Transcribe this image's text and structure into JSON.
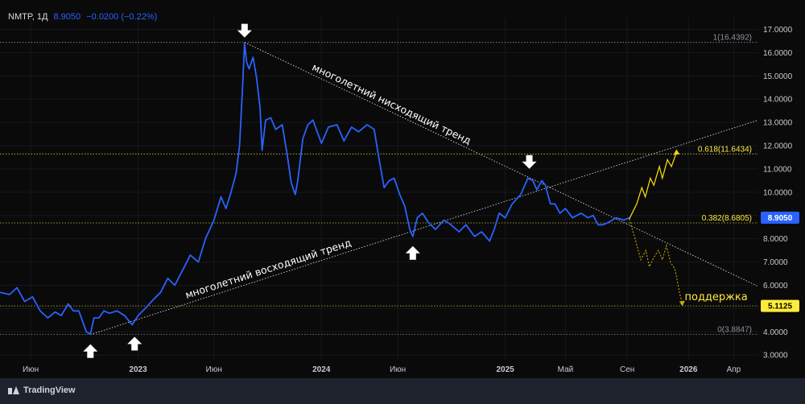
{
  "header": {
    "symbol": "NMTP, 1Д",
    "last": "8.9050",
    "change": "−0.0200 (−0.22%)"
  },
  "brand": {
    "name": "TradingView",
    "icon": "tradingview-logo-icon"
  },
  "colors": {
    "background": "#0a0a0a",
    "price_line": "#2962ff",
    "fib_line": "#c9c240",
    "trend_line": "#d1d4dc",
    "forecast": "#f0d40a",
    "price_badge": "#2962ff",
    "fib_badge": "#ffeb3b"
  },
  "chart_data": {
    "type": "line",
    "title": "",
    "xlabel": "",
    "ylabel": "",
    "ylim": [
      2.8,
      17.5
    ],
    "y_ticks": [
      "3.0000",
      "4.0000",
      "5.0000",
      "6.0000",
      "7.0000",
      "8.0000",
      "9.0000",
      "10.0000",
      "11.0000",
      "12.0000",
      "13.0000",
      "14.0000",
      "15.0000",
      "16.0000",
      "17.0000"
    ],
    "x_ticks": [
      {
        "label": "Июн",
        "date": "2022-06-01"
      },
      {
        "label": "2023",
        "date": "2023-01-01"
      },
      {
        "label": "Июн",
        "date": "2023-06-01"
      },
      {
        "label": "2024",
        "date": "2024-01-01"
      },
      {
        "label": "Июн",
        "date": "2024-06-01"
      },
      {
        "label": "2025",
        "date": "2025-01-01"
      },
      {
        "label": "Май",
        "date": "2025-05-01"
      },
      {
        "label": "Сен",
        "date": "2025-09-01"
      },
      {
        "label": "2026",
        "date": "2026-01-01"
      },
      {
        "label": "Апр",
        "date": "2026-04-01"
      }
    ],
    "x_range": [
      "2022-04-01",
      "2026-05-20"
    ],
    "series": [
      {
        "values": [
          [
            "2022-04-01",
            5.7
          ],
          [
            "2022-04-20",
            5.6
          ],
          [
            "2022-05-05",
            5.9
          ],
          [
            "2022-05-20",
            5.3
          ],
          [
            "2022-06-05",
            5.5
          ],
          [
            "2022-06-20",
            4.9
          ],
          [
            "2022-07-05",
            4.6
          ],
          [
            "2022-07-20",
            4.85
          ],
          [
            "2022-08-01",
            4.7
          ],
          [
            "2022-08-15",
            5.2
          ],
          [
            "2022-08-25",
            4.9
          ],
          [
            "2022-09-05",
            4.9
          ],
          [
            "2022-09-20",
            4.0
          ],
          [
            "2022-09-28",
            3.9
          ],
          [
            "2022-10-05",
            4.6
          ],
          [
            "2022-10-15",
            4.6
          ],
          [
            "2022-10-25",
            4.9
          ],
          [
            "2022-11-05",
            4.8
          ],
          [
            "2022-11-20",
            4.9
          ],
          [
            "2022-12-05",
            4.7
          ],
          [
            "2022-12-20",
            4.3
          ],
          [
            "2023-01-01",
            4.7
          ],
          [
            "2023-01-15",
            5.0
          ],
          [
            "2023-02-01",
            5.4
          ],
          [
            "2023-02-15",
            5.7
          ],
          [
            "2023-03-01",
            6.3
          ],
          [
            "2023-03-15",
            6.0
          ],
          [
            "2023-04-01",
            6.7
          ],
          [
            "2023-04-15",
            7.3
          ],
          [
            "2023-05-01",
            7.0
          ],
          [
            "2023-05-15",
            8.0
          ],
          [
            "2023-06-01",
            8.8
          ],
          [
            "2023-06-15",
            9.8
          ],
          [
            "2023-06-25",
            9.3
          ],
          [
            "2023-07-05",
            10.0
          ],
          [
            "2023-07-15",
            10.8
          ],
          [
            "2023-07-22",
            12.0
          ],
          [
            "2023-07-28",
            14.5
          ],
          [
            "2023-08-01",
            16.4
          ],
          [
            "2023-08-05",
            15.6
          ],
          [
            "2023-08-10",
            15.3
          ],
          [
            "2023-08-18",
            15.8
          ],
          [
            "2023-08-25",
            14.9
          ],
          [
            "2023-09-01",
            13.6
          ],
          [
            "2023-09-05",
            11.8
          ],
          [
            "2023-09-12",
            13.1
          ],
          [
            "2023-09-22",
            13.2
          ],
          [
            "2023-10-02",
            12.7
          ],
          [
            "2023-10-15",
            12.9
          ],
          [
            "2023-10-25",
            11.6
          ],
          [
            "2023-11-02",
            10.4
          ],
          [
            "2023-11-10",
            9.9
          ],
          [
            "2023-11-15",
            10.5
          ],
          [
            "2023-11-25",
            12.3
          ],
          [
            "2023-12-05",
            12.9
          ],
          [
            "2023-12-15",
            13.1
          ],
          [
            "2024-01-01",
            12.1
          ],
          [
            "2024-01-15",
            12.8
          ],
          [
            "2024-02-01",
            12.9
          ],
          [
            "2024-02-15",
            12.2
          ],
          [
            "2024-03-01",
            12.8
          ],
          [
            "2024-03-15",
            12.6
          ],
          [
            "2024-04-01",
            12.9
          ],
          [
            "2024-04-15",
            12.7
          ],
          [
            "2024-04-25",
            11.4
          ],
          [
            "2024-05-05",
            10.2
          ],
          [
            "2024-05-15",
            10.5
          ],
          [
            "2024-05-25",
            10.6
          ],
          [
            "2024-06-05",
            9.9
          ],
          [
            "2024-06-15",
            9.4
          ],
          [
            "2024-06-25",
            8.4
          ],
          [
            "2024-07-01",
            8.1
          ],
          [
            "2024-07-10",
            8.9
          ],
          [
            "2024-07-20",
            9.1
          ],
          [
            "2024-08-01",
            8.7
          ],
          [
            "2024-08-15",
            8.4
          ],
          [
            "2024-09-01",
            8.8
          ],
          [
            "2024-09-15",
            8.6
          ],
          [
            "2024-10-01",
            8.3
          ],
          [
            "2024-10-15",
            8.6
          ],
          [
            "2024-11-01",
            8.1
          ],
          [
            "2024-11-15",
            8.3
          ],
          [
            "2024-12-01",
            7.9
          ],
          [
            "2024-12-10",
            8.4
          ],
          [
            "2024-12-20",
            9.1
          ],
          [
            "2025-01-01",
            8.9
          ],
          [
            "2025-01-15",
            9.5
          ],
          [
            "2025-02-01",
            9.9
          ],
          [
            "2025-02-15",
            10.6
          ],
          [
            "2025-02-25",
            10.5
          ],
          [
            "2025-03-05",
            10.1
          ],
          [
            "2025-03-15",
            10.5
          ],
          [
            "2025-03-22",
            10.3
          ],
          [
            "2025-04-01",
            9.5
          ],
          [
            "2025-04-10",
            9.5
          ],
          [
            "2025-04-20",
            9.1
          ],
          [
            "2025-05-01",
            9.3
          ],
          [
            "2025-05-15",
            8.9
          ],
          [
            "2025-06-01",
            9.1
          ],
          [
            "2025-06-15",
            8.9
          ],
          [
            "2025-06-25",
            9.0
          ],
          [
            "2025-07-05",
            8.6
          ],
          [
            "2025-07-15",
            8.6
          ],
          [
            "2025-07-25",
            8.7
          ],
          [
            "2025-08-10",
            8.9
          ],
          [
            "2025-08-25",
            8.8
          ],
          [
            "2025-09-05",
            8.9
          ]
        ]
      },
      {
        "values": [
          [
            "2025-09-05",
            8.85
          ],
          [
            "2025-09-20",
            9.5
          ],
          [
            "2025-09-30",
            10.2
          ],
          [
            "2025-10-07",
            9.8
          ],
          [
            "2025-10-17",
            10.6
          ],
          [
            "2025-10-24",
            10.3
          ],
          [
            "2025-11-04",
            11.1
          ],
          [
            "2025-11-10",
            10.6
          ],
          [
            "2025-11-20",
            11.4
          ],
          [
            "2025-11-28",
            11.1
          ],
          [
            "2025-12-08",
            11.7
          ]
        ]
      },
      {
        "values": [
          [
            "2025-09-05",
            8.85
          ],
          [
            "2025-09-18",
            7.9
          ],
          [
            "2025-09-28",
            7.1
          ],
          [
            "2025-10-08",
            7.5
          ],
          [
            "2025-10-15",
            6.8
          ],
          [
            "2025-10-24",
            7.2
          ],
          [
            "2025-11-02",
            7.5
          ],
          [
            "2025-11-10",
            7.1
          ],
          [
            "2025-11-18",
            7.7
          ],
          [
            "2025-11-26",
            7.0
          ],
          [
            "2025-12-05",
            6.7
          ],
          [
            "2025-12-15",
            5.6
          ],
          [
            "2025-12-20",
            5.2
          ]
        ]
      }
    ],
    "trendlines": [
      {
        "label": "многолетний нисходящий тренд",
        "from": [
          "2023-08-01",
          16.44
        ],
        "to": [
          "2026-05-20",
          5.95
        ]
      },
      {
        "label": "многолетний восходящий тренд",
        "from": [
          "2022-09-28",
          3.88
        ],
        "to": [
          "2026-05-20",
          13.1
        ]
      }
    ],
    "fib_levels": [
      {
        "label": "1(16.4392)",
        "value": 16.4392,
        "color": "#8a8f99"
      },
      {
        "label": "0.618(11.6434)",
        "value": 11.6434,
        "color": "#c9c240"
      },
      {
        "label": "0.382(8.6805)",
        "value": 8.6805,
        "color": "#c9c240"
      },
      {
        "label": "0(3.8847)",
        "value": 3.8847,
        "color": "#8a8f99"
      },
      {
        "label": "",
        "value": 5.1125,
        "color": "#c9c240"
      }
    ],
    "badges": [
      {
        "label": "8.9050",
        "value": 8.905,
        "bg": "#2962ff",
        "fg": "#ffffff"
      },
      {
        "label": "5.1125",
        "value": 5.1125,
        "bg": "#ffeb3b",
        "fg": "#000000"
      }
    ],
    "annotations": [
      {
        "text": "поддержка",
        "date": "2026-02-25",
        "value": 5.5,
        "color": "#ffeb3b"
      }
    ],
    "arrows": [
      {
        "direction": "up",
        "date": "2022-09-28",
        "value": 3.88
      },
      {
        "direction": "up",
        "date": "2022-12-25",
        "value": 4.2
      },
      {
        "direction": "down",
        "date": "2023-08-01",
        "value": 16.44
      },
      {
        "direction": "up",
        "date": "2024-07-01",
        "value": 8.1
      },
      {
        "direction": "down",
        "date": "2025-02-18",
        "value": 10.8
      }
    ]
  }
}
